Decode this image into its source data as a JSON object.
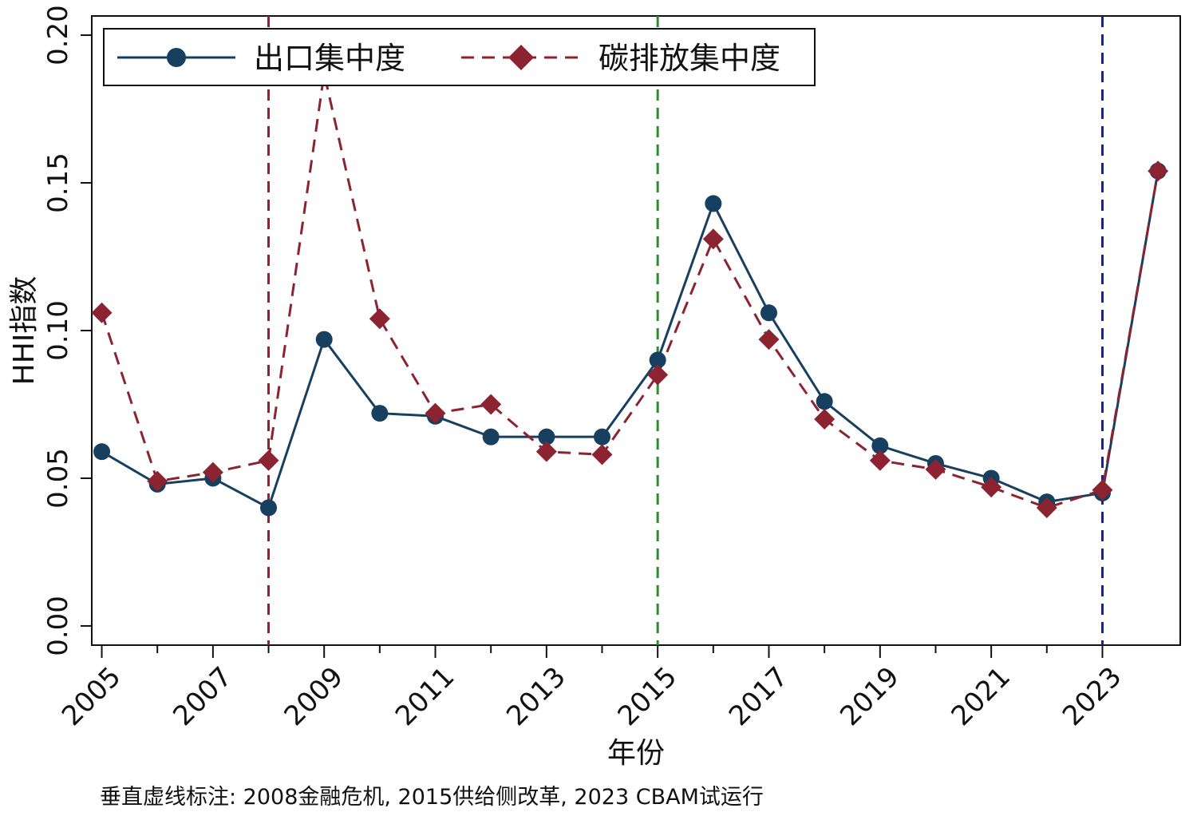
{
  "chart_data": {
    "type": "line",
    "x": [
      2005,
      2006,
      2007,
      2008,
      2009,
      2010,
      2011,
      2012,
      2013,
      2014,
      2015,
      2016,
      2017,
      2018,
      2019,
      2020,
      2021,
      2022,
      2023,
      2024
    ],
    "series": [
      {
        "name": "出口集中度",
        "color": "#173f5f",
        "marker": "circle",
        "line_style": "solid",
        "values": [
          0.059,
          0.048,
          0.05,
          0.04,
          0.097,
          0.072,
          0.071,
          0.064,
          0.064,
          0.064,
          0.09,
          0.143,
          0.106,
          0.076,
          0.061,
          0.055,
          0.05,
          0.042,
          0.045,
          0.154
        ]
      },
      {
        "name": "碳排放集中度",
        "color": "#8b2331",
        "marker": "diamond",
        "line_style": "dashed",
        "values": [
          0.106,
          0.049,
          0.052,
          0.056,
          0.187,
          0.104,
          0.072,
          0.075,
          0.059,
          0.058,
          0.085,
          0.131,
          0.097,
          0.07,
          0.056,
          0.053,
          0.047,
          0.04,
          0.046,
          0.154
        ]
      }
    ],
    "xlabel": "年份",
    "ylabel": "HHI指数",
    "xlim": [
      2004.82,
      2024.4
    ],
    "ylim": [
      -0.0065,
      0.2065
    ],
    "x_ticks": [
      2005,
      2007,
      2009,
      2011,
      2013,
      2015,
      2017,
      2019,
      2021,
      2023
    ],
    "x_tick_labels": [
      "2005",
      "2007",
      "2009",
      "2011",
      "2013",
      "2015",
      "2017",
      "2019",
      "2021",
      "2023"
    ],
    "y_ticks": [
      0.0,
      0.05,
      0.1,
      0.15,
      0.2
    ],
    "y_tick_labels": [
      "0.00",
      "0.05",
      "0.10",
      "0.15",
      "0.20"
    ],
    "minor_x_ticks": [
      2006,
      2008,
      2010,
      2012,
      2014,
      2016,
      2018,
      2020,
      2022
    ],
    "vertical_lines": [
      {
        "x": 2008,
        "color": "#8b2331"
      },
      {
        "x": 2015,
        "color": "#2e8b2e"
      },
      {
        "x": 2023,
        "color": "#1a237e"
      }
    ],
    "legend_position": "top-left",
    "grid": false
  },
  "footnote": "垂直虚线标注: 2008金融危机, 2015供给侧改革, 2023 CBAM试运行"
}
